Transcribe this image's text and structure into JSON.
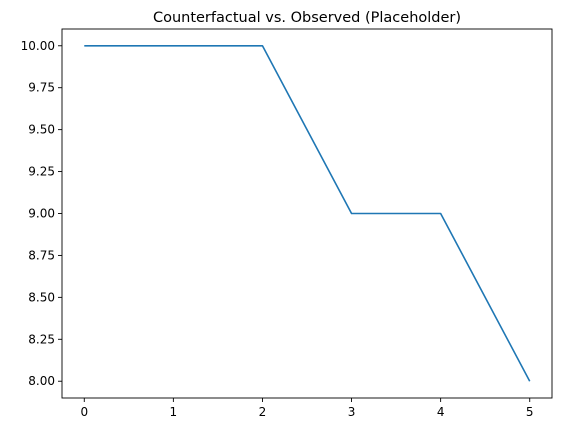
{
  "chart_data": {
    "type": "line",
    "title": "Counterfactual vs. Observed (Placeholder)",
    "xlabel": "",
    "ylabel": "",
    "x": [
      0,
      1,
      2,
      3,
      4,
      5
    ],
    "series": [
      {
        "values": [
          10.0,
          10.0,
          10.0,
          9.0,
          9.0,
          8.0
        ],
        "color": "#1f77b4"
      }
    ],
    "xlim": [
      -0.25,
      5.25
    ],
    "ylim": [
      7.9,
      10.1
    ],
    "xticks": [
      0,
      1,
      2,
      3,
      4,
      5
    ],
    "xtick_labels": [
      "0",
      "1",
      "2",
      "3",
      "4",
      "5"
    ],
    "yticks": [
      8.0,
      8.25,
      8.5,
      8.75,
      9.0,
      9.25,
      9.5,
      9.75,
      10.0
    ],
    "ytick_labels": [
      "8.00",
      "8.25",
      "8.50",
      "8.75",
      "9.00",
      "9.25",
      "9.50",
      "9.75",
      "10.00"
    ],
    "grid": false,
    "legend": "none"
  }
}
